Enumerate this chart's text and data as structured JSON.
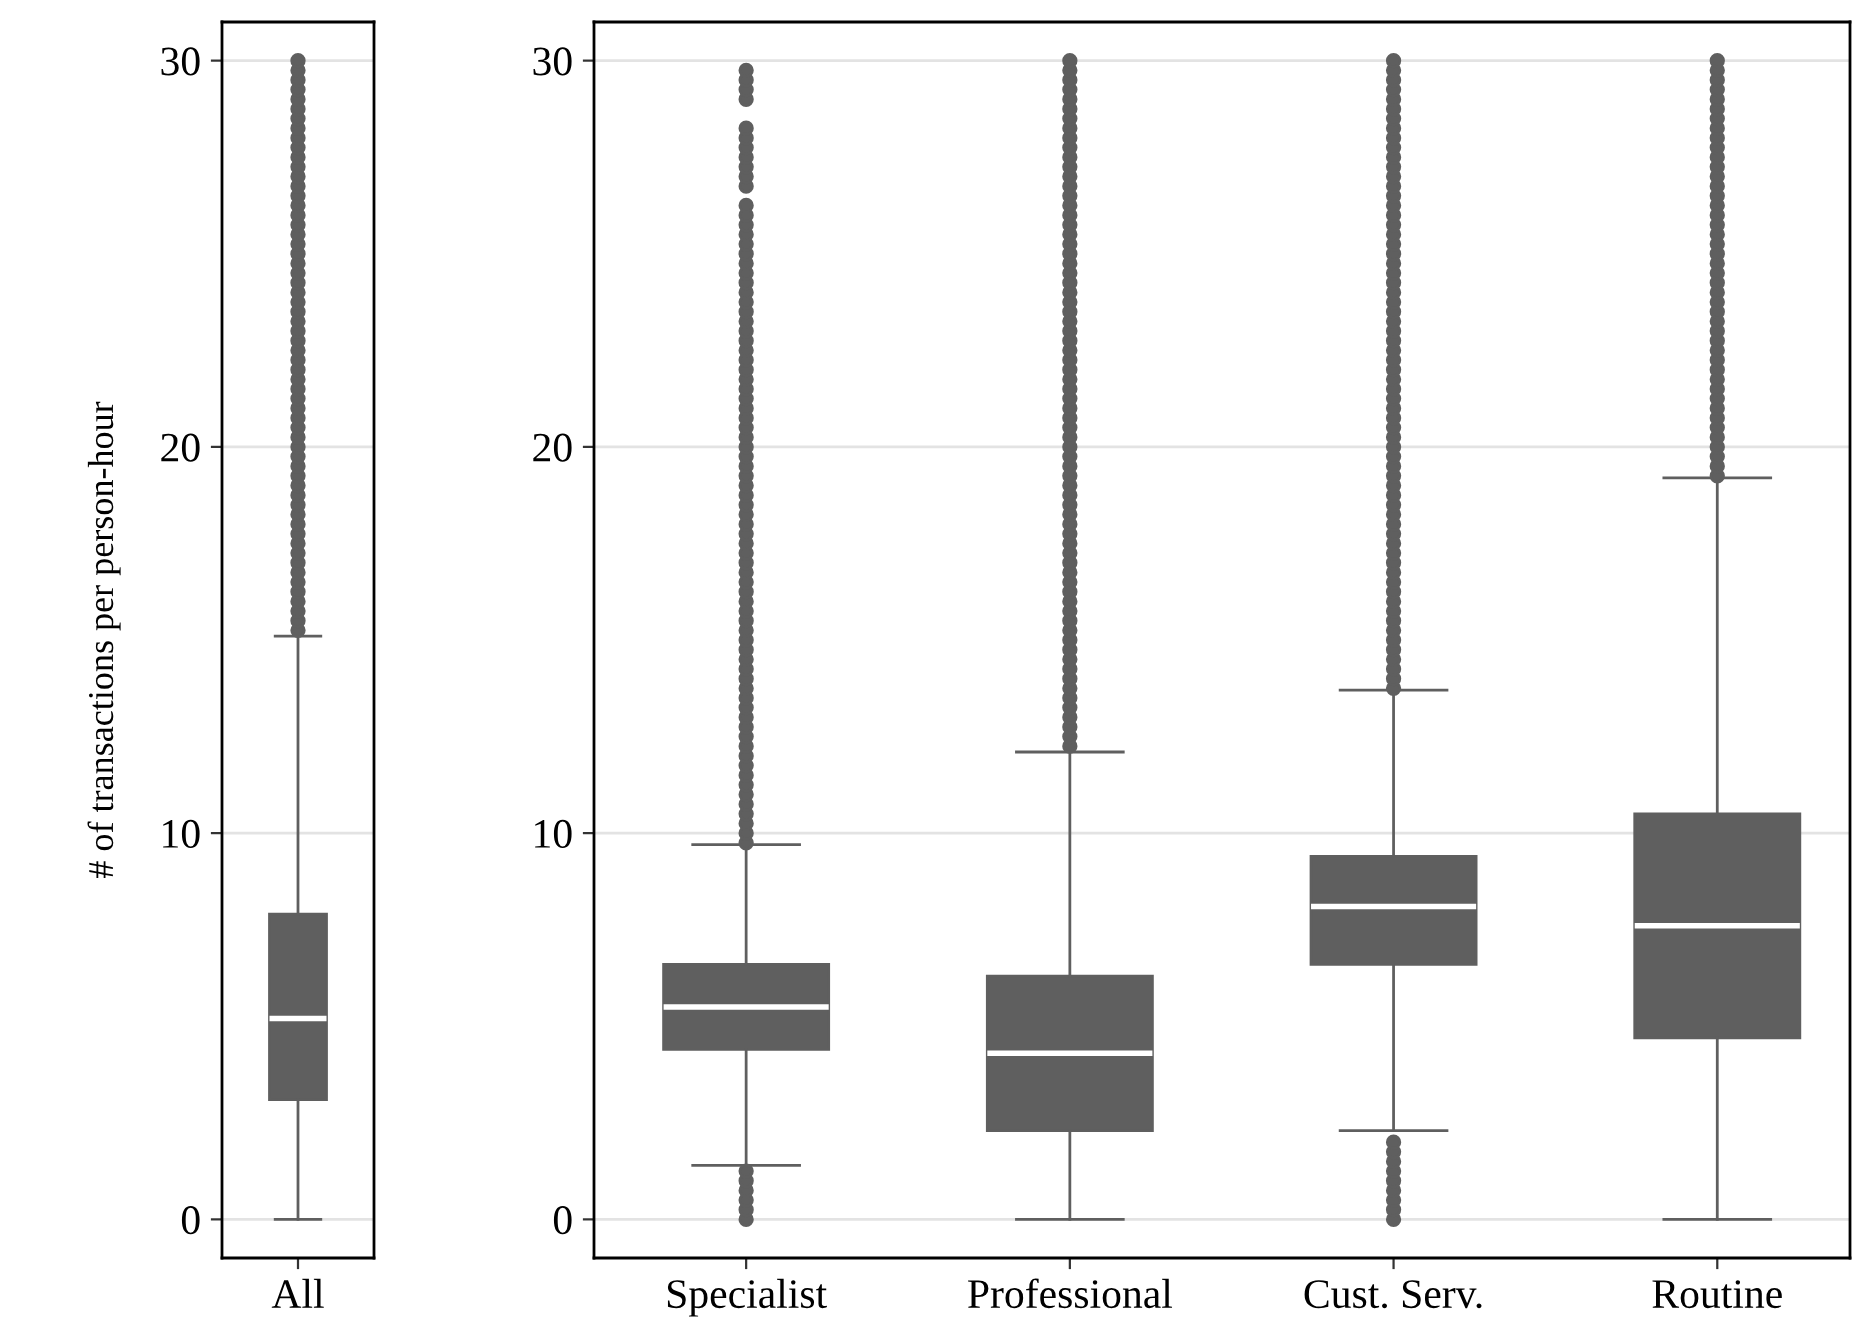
{
  "chart_data": [
    {
      "type": "box",
      "ylabel": "# of transactions per person-hour",
      "categories": [
        "All"
      ],
      "color": "#5f5f5f",
      "ylim": [
        -1,
        31
      ],
      "yticks": [
        0,
        10,
        20,
        30
      ],
      "grid": "y",
      "boxes": [
        {
          "low": 0,
          "q1": 3.1,
          "median": 5.2,
          "q3": 7.9,
          "high": 15.1,
          "outliers": [
            15.25,
            15.5,
            15.75,
            16,
            16.25,
            16.5,
            16.75,
            17,
            17.25,
            17.5,
            17.75,
            18,
            18.25,
            18.5,
            18.75,
            19,
            19.25,
            19.5,
            19.75,
            20,
            20.25,
            20.5,
            20.75,
            21,
            21.25,
            21.5,
            21.75,
            22,
            22.25,
            22.5,
            22.75,
            23,
            23.25,
            23.5,
            23.75,
            24,
            24.25,
            24.5,
            24.75,
            25,
            25.25,
            25.5,
            25.75,
            26,
            26.25,
            26.5,
            26.75,
            27,
            27.25,
            27.5,
            27.75,
            28,
            28.25,
            28.5,
            28.75,
            29,
            29.25,
            29.5,
            29.75,
            30
          ]
        }
      ]
    },
    {
      "type": "box",
      "categories": [
        "Specialist",
        "Professional",
        "Cust. Serv.",
        "Routine"
      ],
      "color": "#5f5f5f",
      "ylim": [
        -1,
        31
      ],
      "yticks": [
        0,
        10,
        20,
        30
      ],
      "grid": "y",
      "boxes": [
        {
          "low": 1.4,
          "q1": 4.4,
          "median": 5.5,
          "q3": 6.6,
          "high": 9.7,
          "outliers": [
            0,
            0.25,
            0.5,
            0.75,
            1,
            1.25,
            9.75,
            10,
            10.25,
            10.5,
            10.75,
            11,
            11.25,
            11.5,
            11.75,
            12,
            12.25,
            12.5,
            12.75,
            13,
            13.25,
            13.5,
            13.75,
            14,
            14.25,
            14.5,
            14.75,
            15,
            15.25,
            15.5,
            15.75,
            16,
            16.25,
            16.5,
            16.75,
            17,
            17.25,
            17.5,
            17.75,
            18,
            18.25,
            18.5,
            18.75,
            19,
            19.25,
            19.5,
            19.75,
            20,
            20.25,
            20.5,
            20.75,
            21,
            21.25,
            21.5,
            21.75,
            22,
            22.25,
            22.5,
            22.75,
            23,
            23.25,
            23.5,
            23.75,
            24,
            24.25,
            24.5,
            24.75,
            25,
            25.25,
            25.5,
            25.75,
            26,
            26.25,
            26.75,
            27,
            27.25,
            27.5,
            27.75,
            28,
            28.25,
            29,
            29.25,
            29.5,
            29.75
          ]
        },
        {
          "low": 0,
          "q1": 2.3,
          "median": 4.3,
          "q3": 6.3,
          "high": 12.1,
          "outliers": [
            12.25,
            12.5,
            12.75,
            13,
            13.25,
            13.5,
            13.75,
            14,
            14.25,
            14.5,
            14.75,
            15,
            15.25,
            15.5,
            15.75,
            16,
            16.25,
            16.5,
            16.75,
            17,
            17.25,
            17.5,
            17.75,
            18,
            18.25,
            18.5,
            18.75,
            19,
            19.25,
            19.5,
            19.75,
            20,
            20.25,
            20.5,
            20.75,
            21,
            21.25,
            21.5,
            21.75,
            22,
            22.25,
            22.5,
            22.75,
            23,
            23.25,
            23.5,
            23.75,
            24,
            24.25,
            24.5,
            24.75,
            25,
            25.25,
            25.5,
            25.75,
            26,
            26.25,
            26.5,
            26.75,
            27,
            27.25,
            27.5,
            27.75,
            28,
            28.25,
            28.5,
            28.75,
            29,
            29.25,
            29.5,
            29.75,
            30
          ]
        },
        {
          "low": 2.3,
          "q1": 6.6,
          "median": 8.1,
          "q3": 9.4,
          "high": 13.7,
          "outliers": [
            0,
            0.25,
            0.5,
            0.75,
            1,
            1.25,
            1.5,
            1.75,
            2,
            13.75,
            14,
            14.25,
            14.5,
            14.75,
            15,
            15.25,
            15.5,
            15.75,
            16,
            16.25,
            16.5,
            16.75,
            17,
            17.25,
            17.5,
            17.75,
            18,
            18.25,
            18.5,
            18.75,
            19,
            19.25,
            19.5,
            19.75,
            20,
            20.25,
            20.5,
            20.75,
            21,
            21.25,
            21.5,
            21.75,
            22,
            22.25,
            22.5,
            22.75,
            23,
            23.25,
            23.5,
            23.75,
            24,
            24.25,
            24.5,
            24.75,
            25,
            25.25,
            25.5,
            25.75,
            26,
            26.25,
            26.5,
            26.75,
            27,
            27.25,
            27.5,
            27.75,
            28,
            28.25,
            28.5,
            28.75,
            29,
            29.25,
            29.5,
            29.75,
            30
          ]
        },
        {
          "low": 0,
          "q1": 4.7,
          "median": 7.6,
          "q3": 10.5,
          "high": 19.2,
          "outliers": [
            19.25,
            19.5,
            19.75,
            20,
            20.25,
            20.5,
            20.75,
            21,
            21.25,
            21.5,
            21.75,
            22,
            22.25,
            22.5,
            22.75,
            23,
            23.25,
            23.5,
            23.75,
            24,
            24.25,
            24.5,
            24.75,
            25,
            25.25,
            25.5,
            25.75,
            26,
            26.25,
            26.5,
            26.75,
            27,
            27.25,
            27.5,
            27.75,
            28,
            28.25,
            28.5,
            28.75,
            29,
            29.25,
            29.5,
            29.75,
            30
          ]
        }
      ]
    }
  ]
}
